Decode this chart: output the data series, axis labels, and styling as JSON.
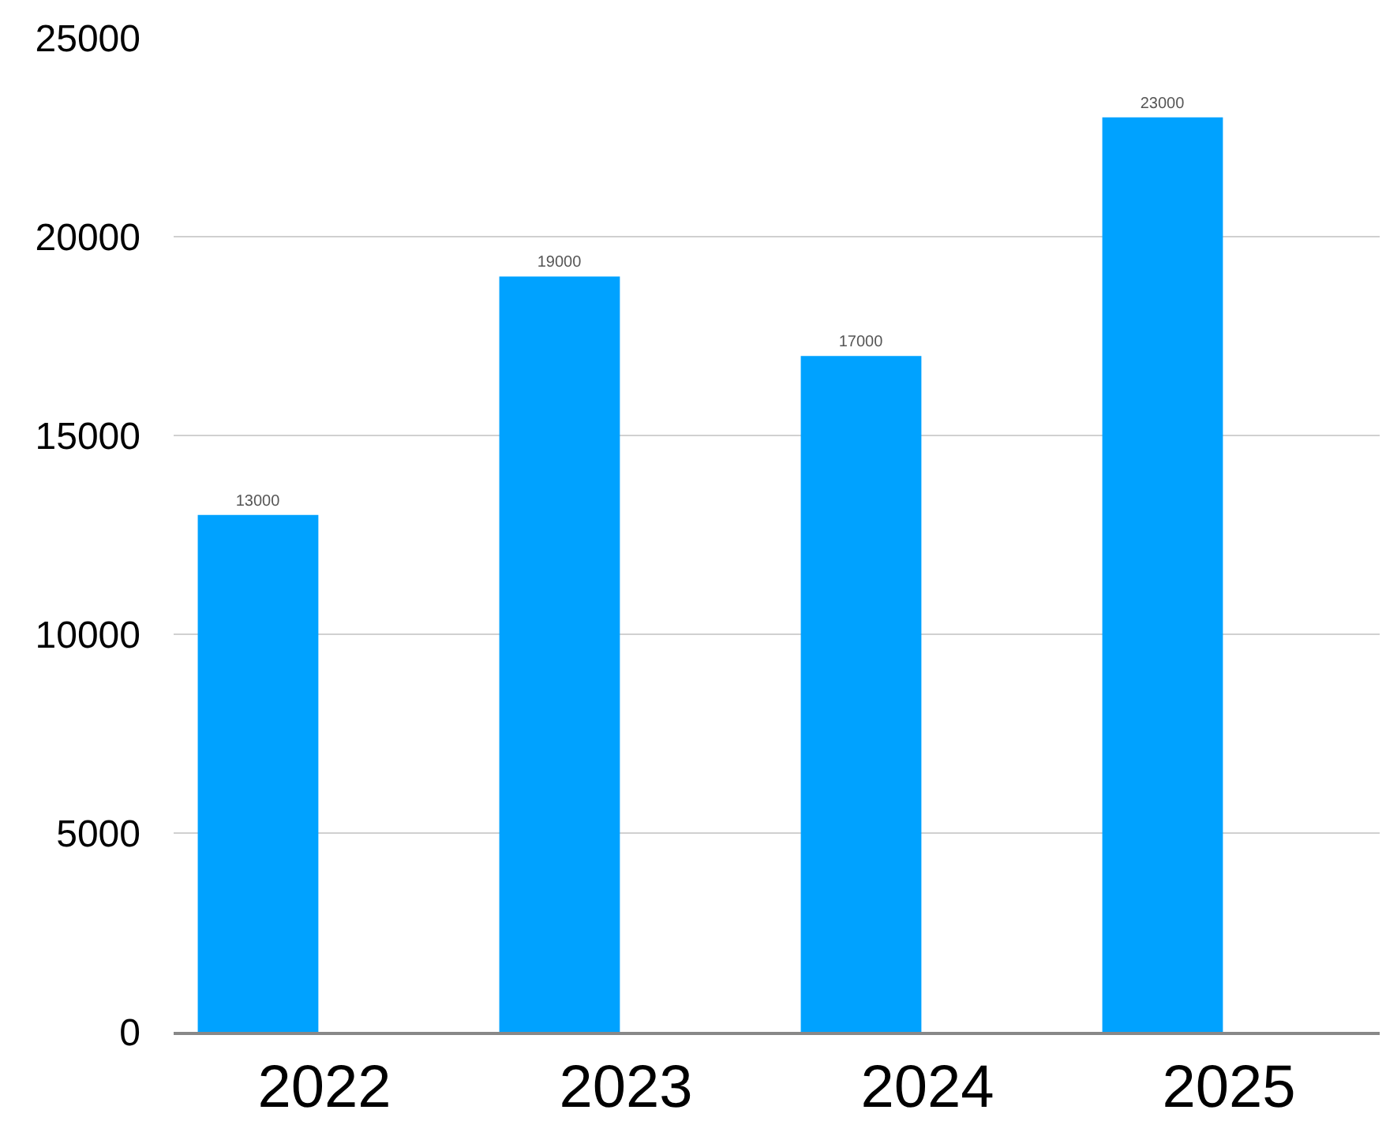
{
  "chart_data": {
    "type": "bar",
    "categories": [
      "2022",
      "2023",
      "2024",
      "2025"
    ],
    "values": [
      13000,
      19000,
      17000,
      23000
    ],
    "color": "#00a2ff",
    "data_labels": true,
    "ylim": [
      0,
      25000
    ],
    "yticks": [
      0,
      5000,
      10000,
      15000,
      20000,
      25000
    ],
    "grid": "y"
  }
}
